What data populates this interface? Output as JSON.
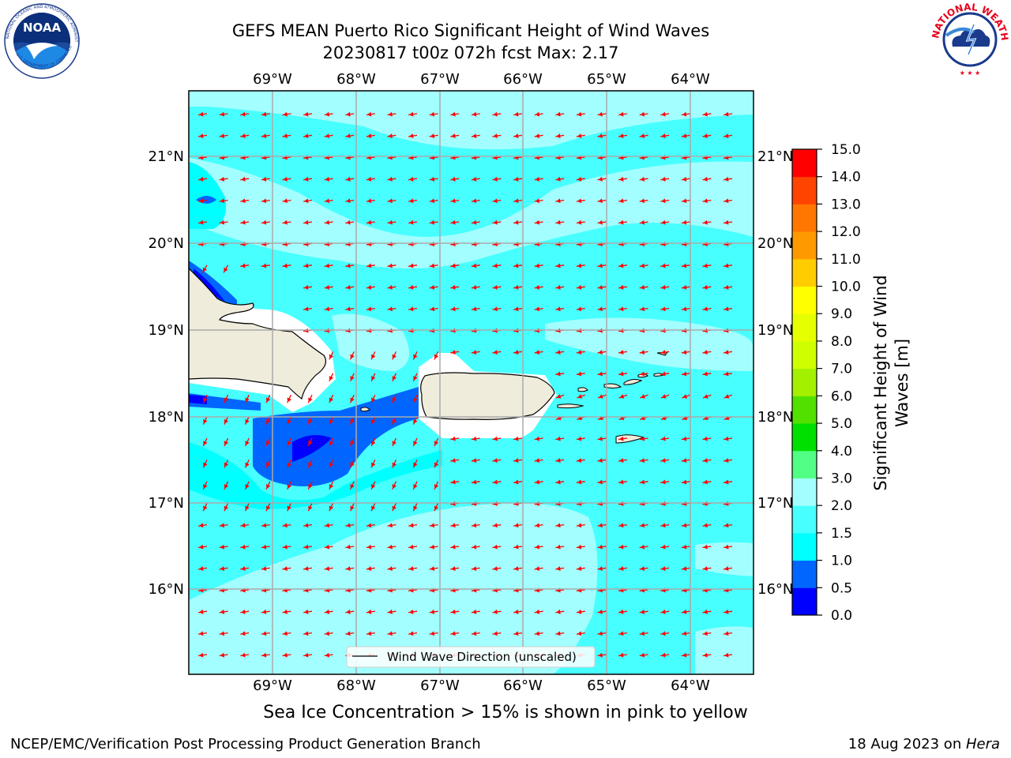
{
  "header": {
    "title_line1": "GEFS MEAN Puerto Rico Significant Height of Wind Waves",
    "title_line2": "20230817 t00z 072h fcst   Max: 2.17"
  },
  "logos": {
    "left": {
      "name": "noaa-logo",
      "text": "NOAA"
    },
    "right": {
      "name": "nws-logo",
      "text": "NATIONAL WEATHER SERVICE"
    }
  },
  "map": {
    "lon_labels": [
      "69°W",
      "68°W",
      "67°W",
      "66°W",
      "65°W",
      "64°W"
    ],
    "lat_labels": [
      "21°N",
      "20°N",
      "19°N",
      "18°N",
      "17°N",
      "16°N"
    ],
    "legend_label": "Wind Wave Direction (unscaled)",
    "arrow_color": "#ff0000",
    "land_color": "#efecdc"
  },
  "colorbar": {
    "label_line1": "Significant Height of Wind",
    "label_line2": "Waves [m]",
    "ticks": [
      "0.0",
      "0.5",
      "1.0",
      "1.5",
      "2.0",
      "3.0",
      "4.0",
      "5.0",
      "6.0",
      "7.0",
      "8.0",
      "9.0",
      "10.0",
      "11.0",
      "12.0",
      "13.0",
      "14.0",
      "15.0"
    ],
    "colors": [
      "#0000ff",
      "#0066ff",
      "#00ffff",
      "#47ffff",
      "#a3ffff",
      "#52ff85",
      "#00e000",
      "#52e000",
      "#a3f000",
      "#cdff00",
      "#e6ff00",
      "#ffff00",
      "#ffcc00",
      "#ff9900",
      "#ff7700",
      "#ff4400",
      "#ff0000"
    ]
  },
  "caption": "Sea Ice Concentration > 15% is shown in pink to yellow",
  "footer": {
    "left": "NCEP/EMC/Verification Post Processing Product Generation Branch",
    "right_prefix": "18 Aug 2023 on ",
    "right_italic": "Hera"
  }
}
